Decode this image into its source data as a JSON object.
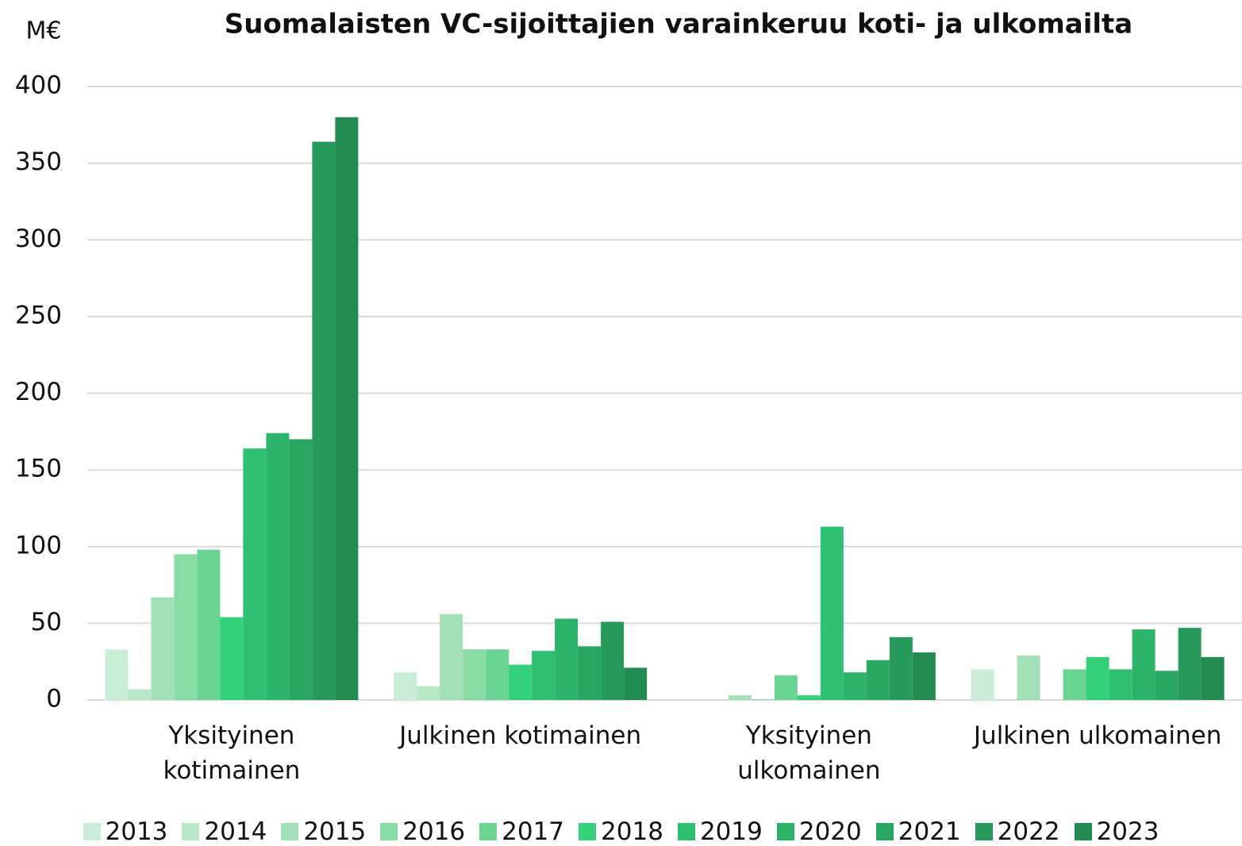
{
  "chart_data": {
    "type": "bar",
    "title": "Suomalaisten VC-sijoittajien varainkeruu koti- ja ulkomailta",
    "y_label": "M€",
    "categories": [
      "Yksityinen kotimainen",
      "Julkinen kotimainen",
      "Yksityinen ulkomainen",
      "Julkinen ulkomainen"
    ],
    "series": [
      {
        "name": "2013",
        "color": "#c9edd6",
        "values": [
          33,
          18,
          0,
          20
        ]
      },
      {
        "name": "2014",
        "color": "#b9e8c9",
        "values": [
          7,
          9,
          0,
          0
        ]
      },
      {
        "name": "2015",
        "color": "#a3e0b7",
        "values": [
          67,
          56,
          3,
          29
        ]
      },
      {
        "name": "2016",
        "color": "#8adca6",
        "values": [
          95,
          33,
          0.5,
          0
        ]
      },
      {
        "name": "2017",
        "color": "#6ad593",
        "values": [
          98,
          33,
          16,
          20
        ]
      },
      {
        "name": "2018",
        "color": "#34d07a",
        "values": [
          54,
          23,
          3,
          28
        ]
      },
      {
        "name": "2019",
        "color": "#30c072",
        "values": [
          164,
          32,
          113,
          20
        ]
      },
      {
        "name": "2020",
        "color": "#2db46b",
        "values": [
          174,
          53,
          18,
          46
        ]
      },
      {
        "name": "2021",
        "color": "#2aa663",
        "values": [
          170,
          35,
          26,
          19
        ]
      },
      {
        "name": "2022",
        "color": "#27995a",
        "values": [
          364,
          51,
          41,
          47
        ]
      },
      {
        "name": "2023",
        "color": "#228b51",
        "values": [
          380,
          21,
          31,
          28
        ]
      }
    ],
    "ylim": [
      0,
      400
    ],
    "yticks": [
      0,
      50,
      100,
      150,
      200,
      250,
      300,
      350,
      400
    ],
    "grid": true,
    "legend": "bottom"
  }
}
